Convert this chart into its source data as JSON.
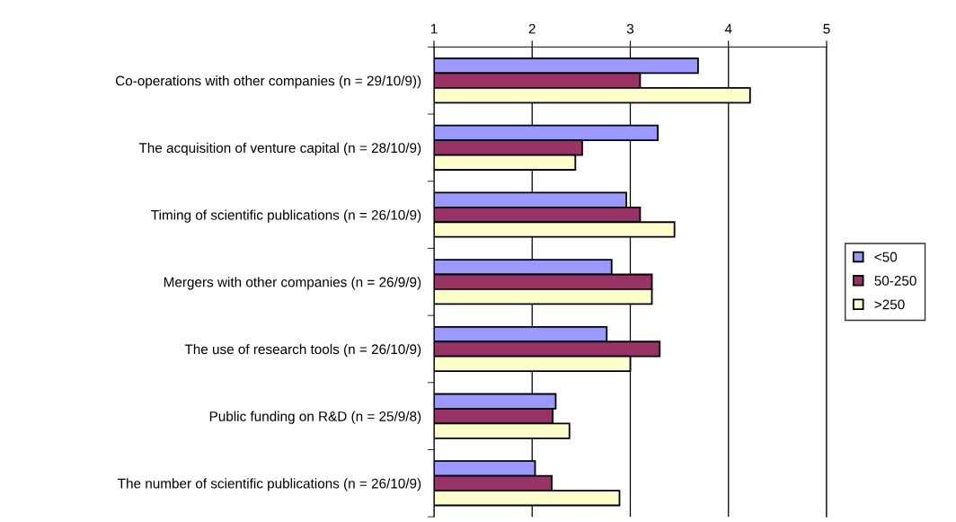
{
  "chart_data": {
    "type": "bar",
    "orientation": "horizontal",
    "categories": [
      "Co-operations with other companies (n = 29/10/9))",
      "The acquisition of venture capital (n = 28/10/9)",
      "Timing of scientific publications (n = 26/10/9)",
      "Mergers with other companies (n = 26/9/9)",
      "The use of research tools (n = 26/10/9)",
      "Public funding on R&D (n = 25/9/8)",
      "The number of scientific publications (n = 26/10/9)"
    ],
    "series": [
      {
        "name": "<50",
        "color": "#9999ff",
        "values": [
          3.69,
          3.28,
          2.96,
          2.81,
          2.76,
          2.24,
          2.03
        ]
      },
      {
        "name": "50-250",
        "color": "#993366",
        "values": [
          3.1,
          2.51,
          3.1,
          3.22,
          3.3,
          2.21,
          2.2
        ]
      },
      {
        "name": ">250",
        "color": "#ffffcc",
        "values": [
          4.22,
          2.44,
          3.45,
          3.22,
          3.0,
          2.38,
          2.89
        ]
      }
    ],
    "xlim": [
      1,
      5
    ],
    "xticks": [
      1,
      2,
      3,
      4,
      5
    ],
    "grid": "x",
    "legend": "right"
  }
}
